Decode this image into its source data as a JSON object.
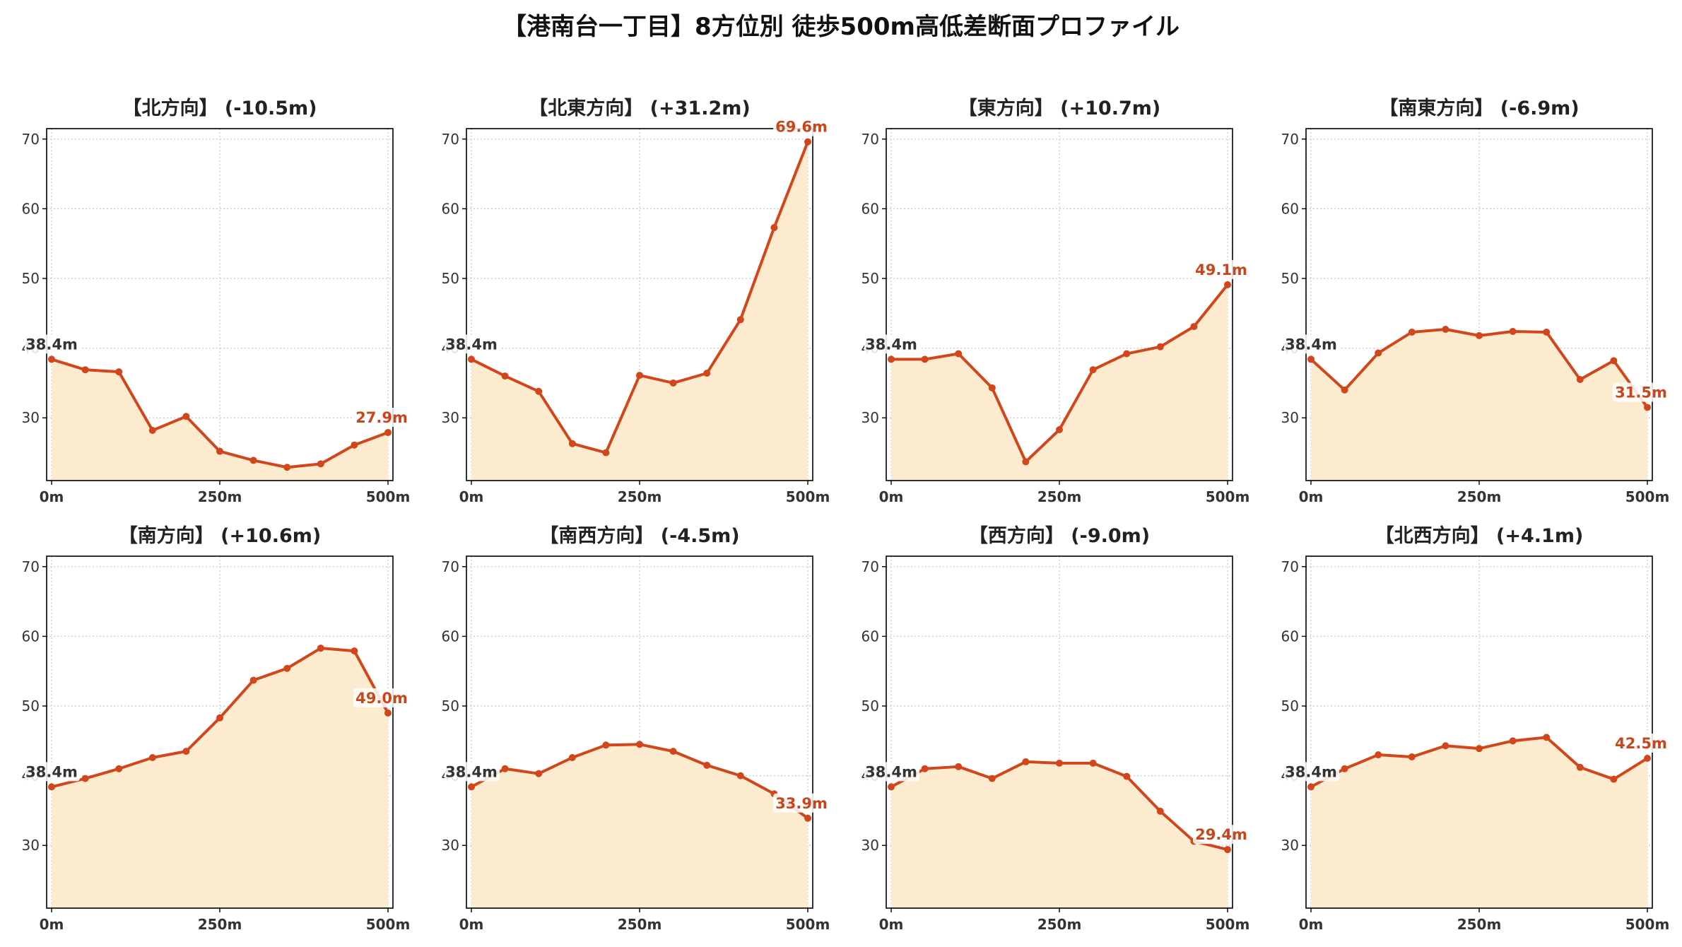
{
  "title": "【港南台一丁目】8方位別 徒歩500m高低差断面プロファイル",
  "colors": {
    "line": "#d2461b",
    "fill": "#fdebd0",
    "grid": "#c8c8c8",
    "start_label": "#333333",
    "end_label": "#c9461d"
  },
  "chart_data": [
    {
      "type": "area",
      "title": "【北方向】 (-10.5m)",
      "x": [
        0,
        50,
        100,
        150,
        200,
        250,
        300,
        350,
        400,
        450,
        500
      ],
      "series": [
        {
          "values": [
            38.4,
            36.9,
            36.6,
            28.2,
            30.2,
            25.2,
            23.9,
            22.9,
            23.4,
            26.1,
            27.9
          ]
        }
      ],
      "start_label": "38.4m",
      "end_label": "27.9m",
      "xticks": [
        "0m",
        "250m",
        "500m"
      ],
      "yticks": [
        "30",
        "40",
        "50",
        "60",
        "70"
      ],
      "xlim": [
        0,
        500
      ],
      "ylim": [
        21,
        71.5
      ],
      "grid": true
    },
    {
      "type": "area",
      "title": "【北東方向】 (+31.2m)",
      "x": [
        0,
        50,
        100,
        150,
        200,
        250,
        300,
        350,
        400,
        450,
        500
      ],
      "series": [
        {
          "values": [
            38.4,
            36.0,
            33.8,
            26.3,
            25.0,
            36.1,
            35.0,
            36.4,
            44.1,
            57.3,
            69.6
          ]
        }
      ],
      "start_label": "38.4m",
      "end_label": "69.6m",
      "xticks": [
        "0m",
        "250m",
        "500m"
      ],
      "yticks": [
        "30",
        "40",
        "50",
        "60",
        "70"
      ],
      "xlim": [
        0,
        500
      ],
      "ylim": [
        21,
        71.5
      ],
      "grid": true
    },
    {
      "type": "area",
      "title": "【東方向】 (+10.7m)",
      "x": [
        0,
        50,
        100,
        150,
        200,
        250,
        300,
        350,
        400,
        450,
        500
      ],
      "series": [
        {
          "values": [
            38.4,
            38.4,
            39.2,
            34.3,
            23.7,
            28.3,
            36.9,
            39.2,
            40.2,
            43.1,
            49.1
          ]
        }
      ],
      "start_label": "38.4m",
      "end_label": "49.1m",
      "xticks": [
        "0m",
        "250m",
        "500m"
      ],
      "yticks": [
        "30",
        "40",
        "50",
        "60",
        "70"
      ],
      "xlim": [
        0,
        500
      ],
      "ylim": [
        21,
        71.5
      ],
      "grid": true
    },
    {
      "type": "area",
      "title": "【南東方向】 (-6.9m)",
      "x": [
        0,
        50,
        100,
        150,
        200,
        250,
        300,
        350,
        400,
        450,
        500
      ],
      "series": [
        {
          "values": [
            38.4,
            34.0,
            39.3,
            42.3,
            42.7,
            41.8,
            42.4,
            42.3,
            35.5,
            38.2,
            31.5
          ]
        }
      ],
      "start_label": "38.4m",
      "end_label": "31.5m",
      "xticks": [
        "0m",
        "250m",
        "500m"
      ],
      "yticks": [
        "30",
        "40",
        "50",
        "60",
        "70"
      ],
      "xlim": [
        0,
        500
      ],
      "ylim": [
        21,
        71.5
      ],
      "grid": true
    },
    {
      "type": "area",
      "title": "【南方向】 (+10.6m)",
      "x": [
        0,
        50,
        100,
        150,
        200,
        250,
        300,
        350,
        400,
        450,
        500
      ],
      "series": [
        {
          "values": [
            38.4,
            39.6,
            41.0,
            42.6,
            43.5,
            48.3,
            53.7,
            55.4,
            58.3,
            57.9,
            49.0
          ]
        }
      ],
      "start_label": "38.4m",
      "end_label": "49.0m",
      "xticks": [
        "0m",
        "250m",
        "500m"
      ],
      "yticks": [
        "30",
        "40",
        "50",
        "60",
        "70"
      ],
      "xlim": [
        0,
        500
      ],
      "ylim": [
        21,
        71.5
      ],
      "grid": true
    },
    {
      "type": "area",
      "title": "【南西方向】 (-4.5m)",
      "x": [
        0,
        50,
        100,
        150,
        200,
        250,
        300,
        350,
        400,
        450,
        500
      ],
      "series": [
        {
          "values": [
            38.4,
            41.0,
            40.3,
            42.6,
            44.4,
            44.5,
            43.5,
            41.5,
            40.0,
            37.4,
            33.9
          ]
        }
      ],
      "start_label": "38.4m",
      "end_label": "33.9m",
      "xticks": [
        "0m",
        "250m",
        "500m"
      ],
      "yticks": [
        "30",
        "40",
        "50",
        "60",
        "70"
      ],
      "xlim": [
        0,
        500
      ],
      "ylim": [
        21,
        71.5
      ],
      "grid": true
    },
    {
      "type": "area",
      "title": "【西方向】 (-9.0m)",
      "x": [
        0,
        50,
        100,
        150,
        200,
        250,
        300,
        350,
        400,
        450,
        500
      ],
      "series": [
        {
          "values": [
            38.4,
            41.0,
            41.3,
            39.6,
            42.0,
            41.8,
            41.8,
            39.9,
            34.9,
            30.6,
            29.4
          ]
        }
      ],
      "start_label": "38.4m",
      "end_label": "29.4m",
      "xticks": [
        "0m",
        "250m",
        "500m"
      ],
      "yticks": [
        "30",
        "40",
        "50",
        "60",
        "70"
      ],
      "xlim": [
        0,
        500
      ],
      "ylim": [
        21,
        71.5
      ],
      "grid": true
    },
    {
      "type": "area",
      "title": "【北西方向】 (+4.1m)",
      "x": [
        0,
        50,
        100,
        150,
        200,
        250,
        300,
        350,
        400,
        450,
        500
      ],
      "series": [
        {
          "values": [
            38.4,
            41.0,
            43.0,
            42.7,
            44.3,
            43.9,
            45.0,
            45.5,
            41.2,
            39.5,
            42.5
          ]
        }
      ],
      "start_label": "38.4m",
      "end_label": "42.5m",
      "xticks": [
        "0m",
        "250m",
        "500m"
      ],
      "yticks": [
        "30",
        "40",
        "50",
        "60",
        "70"
      ],
      "xlim": [
        0,
        500
      ],
      "ylim": [
        21,
        71.5
      ],
      "grid": true
    }
  ]
}
